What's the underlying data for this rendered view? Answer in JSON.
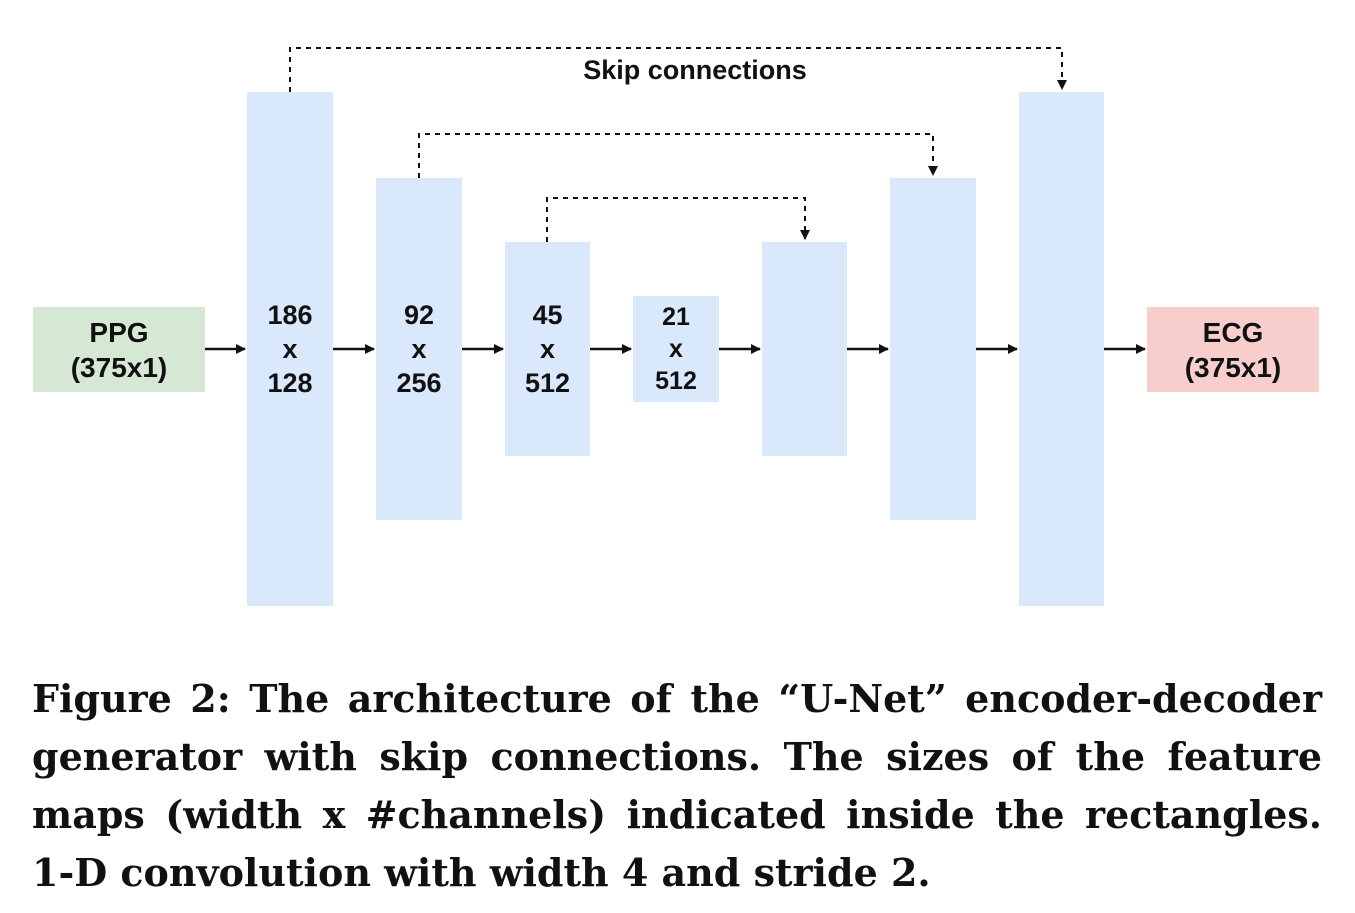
{
  "diagram": {
    "skip_label": "Skip connections",
    "input": {
      "name": "PPG",
      "shape": "(375x1)",
      "color": "#d5e8d4"
    },
    "output": {
      "name": "ECG",
      "shape": "(375x1)",
      "color": "#f8cecc"
    },
    "block_color": "#dae8fc",
    "encoder": [
      {
        "width": "186",
        "x": "x",
        "channels": "128"
      },
      {
        "width": "92",
        "x": "x",
        "channels": "256"
      },
      {
        "width": "45",
        "x": "x",
        "channels": "512"
      }
    ],
    "bottleneck": {
      "width": "21",
      "x": "x",
      "channels": "512"
    }
  },
  "caption": "Figure 2: The architecture of the “U-Net” encoder-decoder generator with skip connections. The sizes of the feature maps (width x #channels) indicated inside the rectangles. 1-D convolution with width 4 and stride 2."
}
